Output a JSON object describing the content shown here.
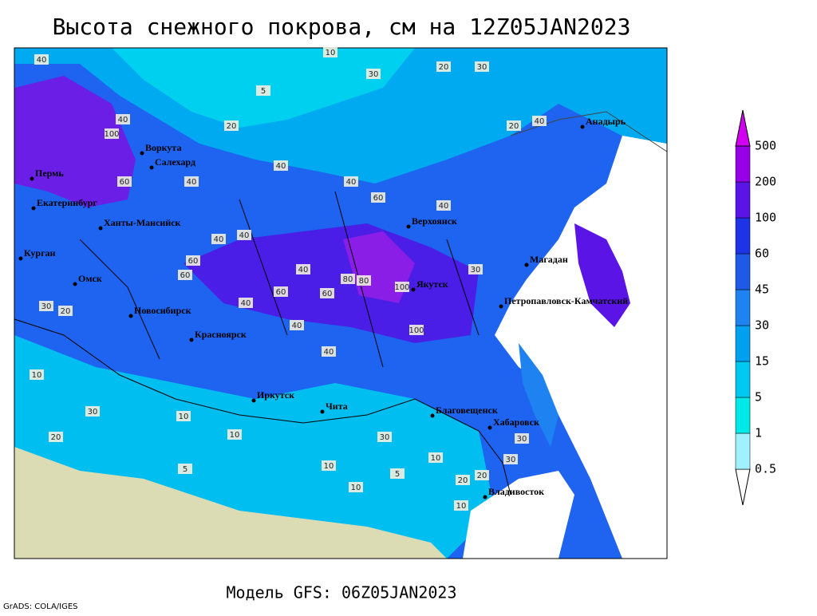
{
  "title": "Высота снежного покрова, см на 12Z05JAN2023",
  "footer": "Модель GFS: 06Z05JAN2023",
  "credit": "GrADS: COLA/IGES",
  "cities": [
    "Воркута",
    "Салехард",
    "Пермь",
    "Екатеринбург",
    "Ханты-Мансийск",
    "Курган",
    "Омск",
    "Новосибирск",
    "Красноярск",
    "Иркутск",
    "Чита",
    "Благовещенск",
    "Хабаровск",
    "Владивосток",
    "Верхоянск",
    "Якутск",
    "Магадан",
    "Петропавловск-Камчатский",
    "Анадырь"
  ],
  "contour_labels": [
    "40",
    "30",
    "20",
    "30",
    "10",
    "5",
    "20",
    "40",
    "20",
    "40",
    "100",
    "60",
    "40",
    "40",
    "40",
    "60",
    "40",
    "40",
    "40",
    "60",
    "60",
    "40",
    "80",
    "100",
    "60",
    "80",
    "100",
    "40",
    "60",
    "40",
    "40",
    "30",
    "20",
    "30",
    "10",
    "30",
    "20",
    "10",
    "10",
    "5",
    "10",
    "30",
    "10",
    "5",
    "10",
    "20",
    "30",
    "30",
    "20",
    "10"
  ],
  "colorbar": {
    "levels": [
      0.5,
      1,
      5,
      15,
      30,
      45,
      60,
      100,
      200,
      500
    ],
    "colors": [
      "#ffffff",
      "#a0f0ff",
      "#00e8e8",
      "#00c8f0",
      "#00a0f0",
      "#1e82f0",
      "#1e5ae6",
      "#1e32e6",
      "#5a14e6",
      "#9600e6",
      "#d200f0"
    ]
  }
}
